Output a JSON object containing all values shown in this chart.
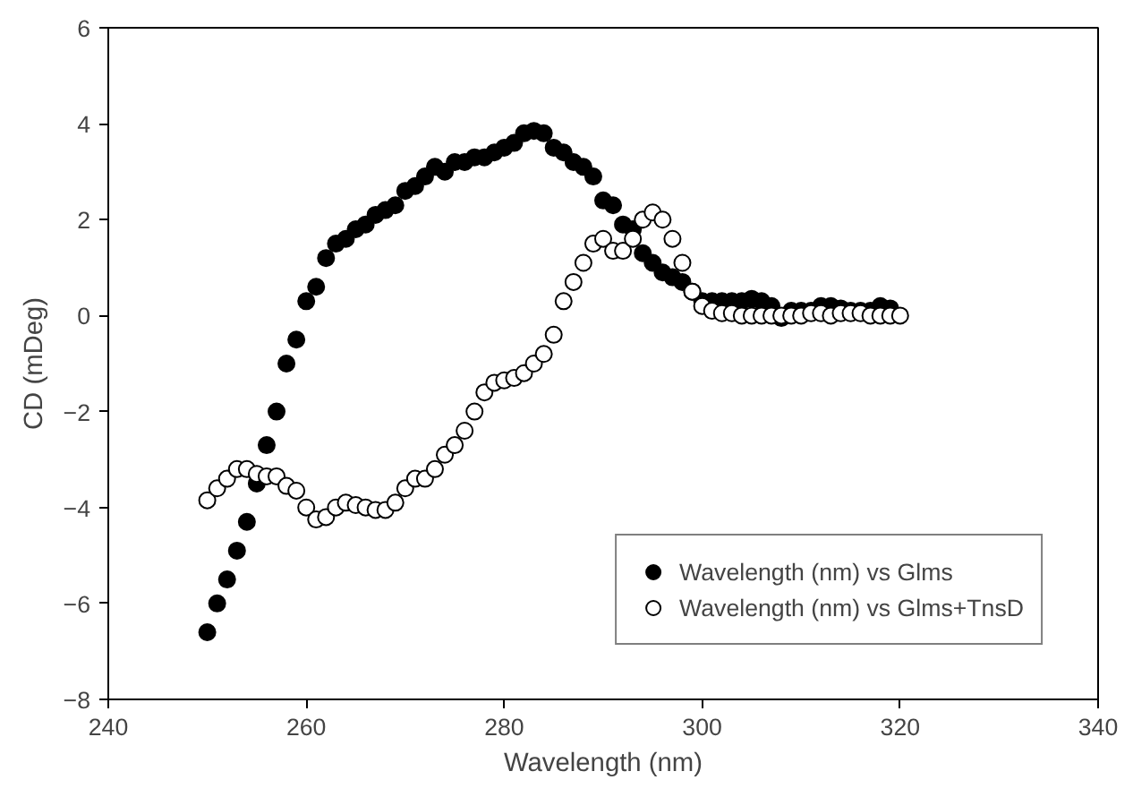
{
  "chart_data": {
    "type": "scatter",
    "xlabel": "Wavelength (nm)",
    "ylabel": "CD (mDeg)",
    "xlim": [
      240,
      340
    ],
    "xticks": [
      240,
      260,
      280,
      300,
      320,
      340
    ],
    "ylim": [
      -8,
      6
    ],
    "yticks": [
      -8,
      -6,
      -4,
      -2,
      0,
      2,
      4,
      6
    ],
    "grid": false,
    "legend": "bottom right",
    "marker": "circle",
    "x": [
      250,
      251,
      252,
      253,
      254,
      255,
      256,
      257,
      258,
      259,
      260,
      261,
      262,
      263,
      264,
      265,
      266,
      267,
      268,
      269,
      270,
      271,
      272,
      273,
      274,
      275,
      276,
      277,
      278,
      279,
      280,
      281,
      282,
      283,
      284,
      285,
      286,
      287,
      288,
      289,
      290,
      291,
      292,
      293,
      294,
      295,
      296,
      297,
      298,
      299,
      300,
      301,
      302,
      303,
      304,
      305,
      306,
      307,
      308,
      309,
      310,
      311,
      312,
      313,
      314,
      315,
      316,
      317,
      318,
      319,
      320
    ],
    "series": [
      {
        "name": "Wavelength (nm) vs Glms",
        "color": "#000000",
        "values": [
          -6.6,
          -6.0,
          -5.5,
          -4.9,
          -4.3,
          -3.5,
          -2.7,
          -2.0,
          -1.0,
          -0.5,
          0.3,
          0.6,
          1.2,
          1.5,
          1.6,
          1.8,
          1.9,
          2.1,
          2.2,
          2.3,
          2.6,
          2.7,
          2.9,
          3.1,
          3.0,
          3.2,
          3.2,
          3.3,
          3.3,
          3.4,
          3.5,
          3.6,
          3.8,
          3.85,
          3.8,
          3.5,
          3.4,
          3.2,
          3.1,
          2.9,
          2.4,
          2.3,
          1.9,
          1.8,
          1.3,
          1.1,
          0.9,
          0.8,
          0.7,
          0.5,
          0.3,
          0.3,
          0.3,
          0.3,
          0.3,
          0.35,
          0.3,
          0.2,
          -0.05,
          0.1,
          0.1,
          0.1,
          0.2,
          0.2,
          0.15,
          0.1,
          0.1,
          0.1,
          0.2,
          0.15,
          null
        ]
      },
      {
        "name": "Wavelength (nm) vs Glms+TnsD",
        "color": "#ffffff",
        "values": [
          -3.85,
          -3.6,
          -3.4,
          -3.2,
          -3.2,
          -3.3,
          -3.35,
          -3.35,
          -3.55,
          -3.65,
          -4.0,
          -4.25,
          -4.2,
          -4.0,
          -3.9,
          -3.95,
          -4.0,
          -4.05,
          -4.05,
          -3.9,
          -3.6,
          -3.4,
          -3.4,
          -3.2,
          -2.9,
          -2.7,
          -2.4,
          -2.0,
          -1.6,
          -1.4,
          -1.35,
          -1.3,
          -1.2,
          -1.0,
          -0.8,
          -0.4,
          0.3,
          0.7,
          1.1,
          1.5,
          1.6,
          1.35,
          1.35,
          1.6,
          2.0,
          2.15,
          2.0,
          1.6,
          1.1,
          0.5,
          0.2,
          0.1,
          0.05,
          0.05,
          0.0,
          0.0,
          0.0,
          0.0,
          0.0,
          0.0,
          0.0,
          0.05,
          0.05,
          0.0,
          0.05,
          0.05,
          0.05,
          0.0,
          0.0,
          0.0,
          0.0
        ]
      }
    ]
  }
}
